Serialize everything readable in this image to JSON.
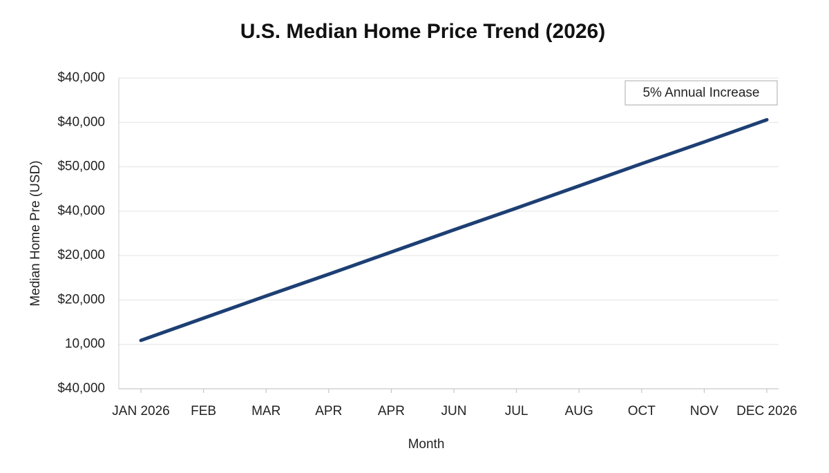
{
  "chart_data": {
    "type": "line",
    "title": "U.S. Median Home Price Trend (2026)",
    "x_label": "Month",
    "y_label": "Median Home Pre (USD)",
    "annotation": "5% Annual Increase",
    "categories": [
      "JAN 2026",
      "FEB",
      "MAR",
      "APR",
      "APR",
      "JUN",
      "JUL",
      "AUG",
      "OCT",
      "NOV",
      "DEC 2026"
    ],
    "y_categories": [
      "$40,000",
      "10,000",
      "$20,000",
      "$20,000",
      "$40,000",
      "$50,000",
      "$40,000",
      "$40,000"
    ],
    "values": [
      1.09,
      1.59,
      2.09,
      2.58,
      3.08,
      3.58,
      4.07,
      4.57,
      5.07,
      5.56,
      6.06
    ],
    "color": "#1d3f74",
    "grid": true
  }
}
